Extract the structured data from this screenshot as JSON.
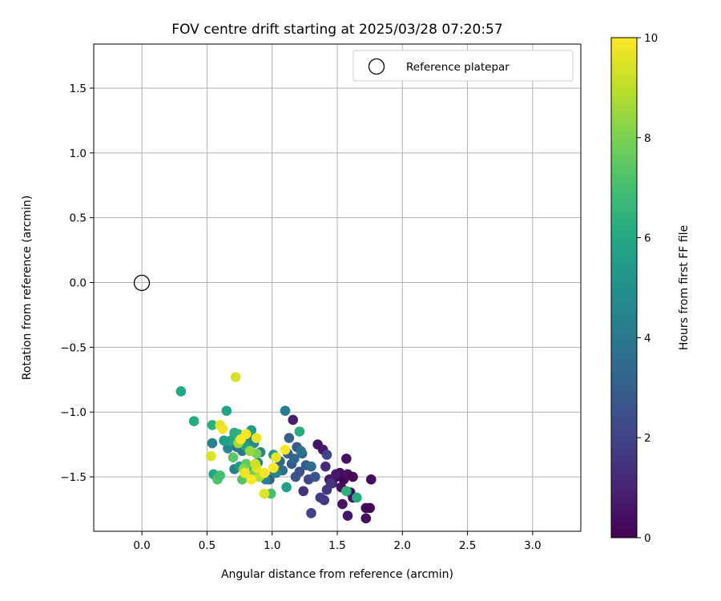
{
  "chart_data": {
    "type": "scatter",
    "title": "FOV centre drift starting at 2025/03/28 07:20:57",
    "xlabel": "Angular distance from reference (arcmin)",
    "ylabel": "Rotation from reference (arcmin)",
    "xlim": [
      -0.37,
      3.37
    ],
    "ylim": [
      -1.92,
      1.84
    ],
    "xticks": [
      0.0,
      0.5,
      1.0,
      1.5,
      2.0,
      2.5,
      3.0
    ],
    "yticks": [
      -1.5,
      -1.0,
      -0.5,
      0.0,
      0.5,
      1.0,
      1.5
    ],
    "xtick_labels": [
      "0.0",
      "0.5",
      "1.0",
      "1.5",
      "2.0",
      "2.5",
      "3.0"
    ],
    "ytick_labels": [
      "−1.5",
      "−1.0",
      "−0.5",
      "0.0",
      "0.5",
      "1.0",
      "1.5"
    ],
    "grid": true,
    "legend": {
      "position": "top-right",
      "entries": [
        {
          "label": "Reference platepar",
          "marker": "open-circle",
          "x": 0.0,
          "y": 0.0
        }
      ]
    },
    "colorbar": {
      "label": "Hours from first FF file",
      "colormap": "viridis",
      "range": [
        0,
        10
      ],
      "ticks": [
        0,
        2,
        4,
        6,
        8,
        10
      ],
      "tick_labels": [
        "0",
        "2",
        "4",
        "6",
        "8",
        "10"
      ]
    },
    "points": [
      {
        "x": 1.49,
        "y": -1.5,
        "c": 0.2
      },
      {
        "x": 1.52,
        "y": -1.47,
        "c": 0.3
      },
      {
        "x": 1.55,
        "y": -1.52,
        "c": 0.1
      },
      {
        "x": 1.58,
        "y": -1.48,
        "c": 0.4
      },
      {
        "x": 1.62,
        "y": -1.5,
        "c": 0.2
      },
      {
        "x": 1.46,
        "y": -1.55,
        "c": 0.5
      },
      {
        "x": 1.53,
        "y": -1.58,
        "c": 0.3
      },
      {
        "x": 1.6,
        "y": -1.62,
        "c": 0.2
      },
      {
        "x": 1.57,
        "y": -1.36,
        "c": 0.4
      },
      {
        "x": 1.39,
        "y": -1.29,
        "c": 0.6
      },
      {
        "x": 1.35,
        "y": -1.25,
        "c": 0.5
      },
      {
        "x": 1.76,
        "y": -1.52,
        "c": 0.3
      },
      {
        "x": 1.72,
        "y": -1.74,
        "c": 0.2
      },
      {
        "x": 1.75,
        "y": -1.74,
        "c": 0.1
      },
      {
        "x": 1.72,
        "y": -1.82,
        "c": 0.3
      },
      {
        "x": 1.54,
        "y": -1.71,
        "c": 0.5
      },
      {
        "x": 1.58,
        "y": -1.8,
        "c": 0.6
      },
      {
        "x": 1.62,
        "y": -1.66,
        "c": 0.4
      },
      {
        "x": 1.49,
        "y": -1.48,
        "c": 0.6
      },
      {
        "x": 1.44,
        "y": -1.52,
        "c": 0.7
      },
      {
        "x": 1.16,
        "y": -1.06,
        "c": 0.8
      },
      {
        "x": 1.41,
        "y": -1.42,
        "c": 1.2
      },
      {
        "x": 1.45,
        "y": -1.55,
        "c": 1.5
      },
      {
        "x": 1.42,
        "y": -1.6,
        "c": 1.6
      },
      {
        "x": 1.37,
        "y": -1.66,
        "c": 1.8
      },
      {
        "x": 1.4,
        "y": -1.68,
        "c": 1.7
      },
      {
        "x": 1.3,
        "y": -1.78,
        "c": 1.9
      },
      {
        "x": 1.24,
        "y": -1.61,
        "c": 1.4
      },
      {
        "x": 1.42,
        "y": -1.33,
        "c": 2.0
      },
      {
        "x": 1.28,
        "y": -1.52,
        "c": 2.2
      },
      {
        "x": 1.33,
        "y": -1.5,
        "c": 2.5
      },
      {
        "x": 1.21,
        "y": -1.46,
        "c": 2.4
      },
      {
        "x": 1.18,
        "y": -1.5,
        "c": 2.6
      },
      {
        "x": 1.15,
        "y": -1.4,
        "c": 2.8
      },
      {
        "x": 1.12,
        "y": -1.32,
        "c": 3.0
      },
      {
        "x": 1.19,
        "y": -1.27,
        "c": 2.7
      },
      {
        "x": 1.23,
        "y": -1.32,
        "c": 3.2
      },
      {
        "x": 1.13,
        "y": -1.2,
        "c": 3.0
      },
      {
        "x": 1.06,
        "y": -1.38,
        "c": 3.4
      },
      {
        "x": 1.02,
        "y": -1.46,
        "c": 3.1
      },
      {
        "x": 0.98,
        "y": -1.52,
        "c": 3.0
      },
      {
        "x": 1.08,
        "y": -1.45,
        "c": 3.6
      },
      {
        "x": 1.26,
        "y": -1.41,
        "c": 2.9
      },
      {
        "x": 1.3,
        "y": -1.42,
        "c": 3.5
      },
      {
        "x": 1.17,
        "y": -1.36,
        "c": 3.3
      },
      {
        "x": 1.22,
        "y": -1.3,
        "c": 3.8
      },
      {
        "x": 1.1,
        "y": -0.99,
        "c": 4.2
      },
      {
        "x": 1.03,
        "y": -1.47,
        "c": 4.5
      },
      {
        "x": 0.95,
        "y": -1.52,
        "c": 4.3
      },
      {
        "x": 0.93,
        "y": -1.49,
        "c": 4.8
      },
      {
        "x": 0.89,
        "y": -1.39,
        "c": 4.6
      },
      {
        "x": 0.91,
        "y": -1.31,
        "c": 4.4
      },
      {
        "x": 0.86,
        "y": -1.24,
        "c": 4.7
      },
      {
        "x": 0.82,
        "y": -1.21,
        "c": 4.9
      },
      {
        "x": 0.77,
        "y": -1.3,
        "c": 4.1
      },
      {
        "x": 0.71,
        "y": -1.44,
        "c": 4.3
      },
      {
        "x": 0.66,
        "y": -1.28,
        "c": 4.6
      },
      {
        "x": 0.73,
        "y": -1.27,
        "c": 3.9
      },
      {
        "x": 0.54,
        "y": -1.24,
        "c": 4.4
      },
      {
        "x": 1.11,
        "y": -1.58,
        "c": 5.6
      },
      {
        "x": 1.01,
        "y": -1.33,
        "c": 5.2
      },
      {
        "x": 0.84,
        "y": -1.14,
        "c": 5.5
      },
      {
        "x": 0.8,
        "y": -1.27,
        "c": 5.8
      },
      {
        "x": 0.75,
        "y": -1.42,
        "c": 5.4
      },
      {
        "x": 0.68,
        "y": -1.22,
        "c": 5.9
      },
      {
        "x": 0.63,
        "y": -1.22,
        "c": 5.6
      },
      {
        "x": 0.65,
        "y": -0.99,
        "c": 5.8
      },
      {
        "x": 0.3,
        "y": -0.84,
        "c": 6.0
      },
      {
        "x": 0.4,
        "y": -1.07,
        "c": 6.1
      },
      {
        "x": 0.54,
        "y": -1.1,
        "c": 6.3
      },
      {
        "x": 0.55,
        "y": -1.48,
        "c": 6.0
      },
      {
        "x": 1.21,
        "y": -1.15,
        "c": 6.2
      },
      {
        "x": 1.57,
        "y": -1.61,
        "c": 6.4
      },
      {
        "x": 1.65,
        "y": -1.66,
        "c": 6.1
      },
      {
        "x": 0.86,
        "y": -1.45,
        "c": 6.6
      },
      {
        "x": 0.74,
        "y": -1.17,
        "c": 6.5
      },
      {
        "x": 0.71,
        "y": -1.16,
        "c": 6.3
      },
      {
        "x": 0.99,
        "y": -1.63,
        "c": 7.0
      },
      {
        "x": 0.58,
        "y": -1.52,
        "c": 7.2
      },
      {
        "x": 0.6,
        "y": -1.49,
        "c": 7.0
      },
      {
        "x": 0.77,
        "y": -1.52,
        "c": 7.3
      },
      {
        "x": 0.8,
        "y": -1.4,
        "c": 7.6
      },
      {
        "x": 0.85,
        "y": -1.48,
        "c": 7.8
      },
      {
        "x": 0.7,
        "y": -1.35,
        "c": 7.4
      },
      {
        "x": 0.88,
        "y": -1.32,
        "c": 8.0
      },
      {
        "x": 0.78,
        "y": -1.44,
        "c": 8.2
      },
      {
        "x": 0.83,
        "y": -1.3,
        "c": 8.4
      },
      {
        "x": 0.74,
        "y": -1.24,
        "c": 8.6
      },
      {
        "x": 0.9,
        "y": -1.5,
        "c": 8.8
      },
      {
        "x": 0.72,
        "y": -0.73,
        "c": 9.4
      },
      {
        "x": 0.6,
        "y": -1.1,
        "c": 9.6
      },
      {
        "x": 0.62,
        "y": -1.13,
        "c": 9.8
      },
      {
        "x": 0.53,
        "y": -1.34,
        "c": 9.5
      },
      {
        "x": 0.88,
        "y": -1.2,
        "c": 9.7
      },
      {
        "x": 0.8,
        "y": -1.17,
        "c": 9.9
      },
      {
        "x": 0.84,
        "y": -1.52,
        "c": 10.0
      },
      {
        "x": 0.94,
        "y": -1.47,
        "c": 9.8
      },
      {
        "x": 0.88,
        "y": -1.43,
        "c": 9.6
      },
      {
        "x": 1.01,
        "y": -1.43,
        "c": 9.9
      },
      {
        "x": 1.03,
        "y": -1.35,
        "c": 9.7
      },
      {
        "x": 1.1,
        "y": -1.29,
        "c": 10.0
      },
      {
        "x": 0.94,
        "y": -1.63,
        "c": 9.5
      },
      {
        "x": 0.79,
        "y": -1.47,
        "c": 9.8
      },
      {
        "x": 0.76,
        "y": -1.21,
        "c": 10.0
      },
      {
        "x": 0.87,
        "y": -1.4,
        "c": 9.3
      }
    ]
  }
}
